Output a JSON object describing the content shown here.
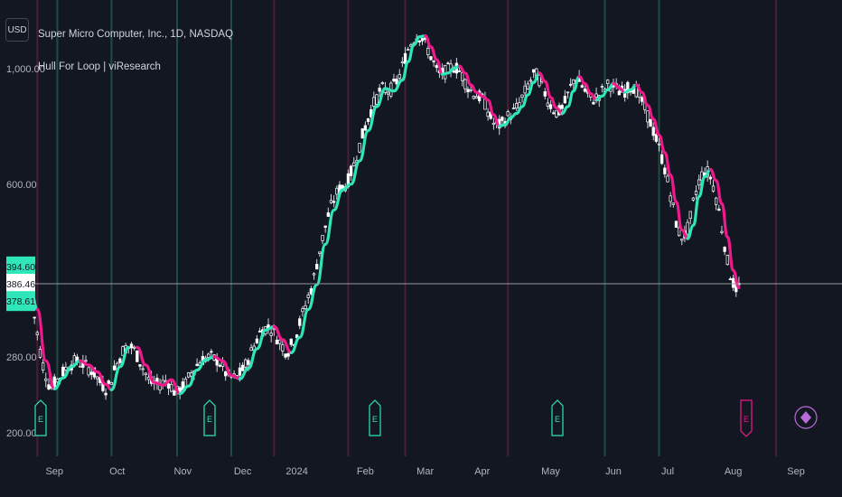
{
  "currency_label": "USD",
  "header": {
    "symbol_line": "Super Micro Computer, Inc., 1D, NASDAQ",
    "indicator_line": "Hull For Loop | viResearch"
  },
  "colors": {
    "background": "#131722",
    "up_color": "#2ee6b8",
    "down_color": "#f0198c",
    "candle": "#ffffff",
    "vline_up": "#1e4d40",
    "vline_down": "#4a1d38",
    "crosshair": "#9598a1"
  },
  "price_badges": [
    {
      "label": "394.60",
      "kind": "up"
    },
    {
      "label": "386.46",
      "kind": "current"
    },
    {
      "label": "378.61",
      "kind": "up"
    }
  ],
  "event_markers": [
    {
      "icon": "earnings-icon",
      "glyph": "E",
      "x": 236,
      "kind": "up"
    },
    {
      "icon": "earnings-icon",
      "glyph": "E",
      "x": 308,
      "kind": "up"
    },
    {
      "icon": "earnings-icon",
      "glyph": "E",
      "x": 440,
      "kind": "up"
    },
    {
      "icon": "earnings-icon",
      "glyph": "E",
      "x": 548,
      "kind": "up"
    },
    {
      "icon": "earnings-icon",
      "glyph": "E",
      "x": 632,
      "kind": "down"
    },
    {
      "icon": "dividend-icon",
      "glyph": "◆",
      "x": 652,
      "kind": "down"
    }
  ],
  "chart_data": {
    "type": "line",
    "x_unit": "trading days since 2023-08-21",
    "x_tick_labels": [
      {
        "label": "Sep",
        "x": 8
      },
      {
        "label": "Oct",
        "x": 30
      },
      {
        "label": "Nov",
        "x": 53
      },
      {
        "label": "Dec",
        "x": 74
      },
      {
        "label": "2024",
        "x": 93
      },
      {
        "label": "Feb",
        "x": 117
      },
      {
        "label": "Mar",
        "x": 138
      },
      {
        "label": "Apr",
        "x": 158
      },
      {
        "label": "May",
        "x": 182
      },
      {
        "label": "Jun",
        "x": 204
      },
      {
        "label": "Jul",
        "x": 223
      },
      {
        "label": "Aug",
        "x": 246
      },
      {
        "label": "Sep",
        "x": 268
      }
    ],
    "y_tick_labels": [
      "200.00",
      "280.00",
      "600.00",
      "1,000.00"
    ],
    "y_ticks": [
      200,
      280,
      600,
      1000
    ],
    "y_scale": "log",
    "ylim": [
      190,
      1300
    ],
    "xlim": [
      0,
      274
    ],
    "vertical_signal_lines": [
      {
        "x": 2,
        "kind": "down"
      },
      {
        "x": 9,
        "kind": "up"
      },
      {
        "x": 28,
        "kind": "up"
      },
      {
        "x": 51,
        "kind": "up"
      },
      {
        "x": 70,
        "kind": "up"
      },
      {
        "x": 85,
        "kind": "down"
      },
      {
        "x": 111,
        "kind": "down"
      },
      {
        "x": 131,
        "kind": "down"
      },
      {
        "x": 167,
        "kind": "down"
      },
      {
        "x": 201,
        "kind": "up"
      },
      {
        "x": 220,
        "kind": "up"
      },
      {
        "x": 261,
        "kind": "down"
      }
    ],
    "hull_line": [
      [
        0,
        370
      ],
      [
        2,
        345
      ],
      [
        5,
        275
      ],
      [
        8,
        243
      ],
      [
        11,
        255
      ],
      [
        14,
        268
      ],
      [
        17,
        275
      ],
      [
        20,
        270
      ],
      [
        23,
        262
      ],
      [
        26,
        248
      ],
      [
        28,
        242
      ],
      [
        31,
        268
      ],
      [
        34,
        292
      ],
      [
        37,
        292
      ],
      [
        40,
        270
      ],
      [
        43,
        250
      ],
      [
        46,
        247
      ],
      [
        49,
        253
      ],
      [
        52,
        238
      ],
      [
        55,
        246
      ],
      [
        58,
        264
      ],
      [
        61,
        276
      ],
      [
        64,
        280
      ],
      [
        67,
        275
      ],
      [
        70,
        258
      ],
      [
        73,
        254
      ],
      [
        76,
        266
      ],
      [
        79,
        290
      ],
      [
        82,
        315
      ],
      [
        85,
        320
      ],
      [
        88,
        302
      ],
      [
        91,
        285
      ],
      [
        94,
        305
      ],
      [
        97,
        345
      ],
      [
        100,
        385
      ],
      [
        103,
        460
      ],
      [
        106,
        535
      ],
      [
        109,
        585
      ],
      [
        112,
        600
      ],
      [
        115,
        665
      ],
      [
        118,
        760
      ],
      [
        121,
        845
      ],
      [
        124,
        915
      ],
      [
        127,
        905
      ],
      [
        130,
        950
      ],
      [
        132,
        1030
      ],
      [
        134,
        1110
      ],
      [
        136,
        1150
      ],
      [
        138,
        1155
      ],
      [
        140,
        1100
      ],
      [
        142,
        1040
      ],
      [
        144,
        975
      ],
      [
        146,
        980
      ],
      [
        148,
        1000
      ],
      [
        150,
        1010
      ],
      [
        152,
        980
      ],
      [
        154,
        930
      ],
      [
        156,
        900
      ],
      [
        158,
        885
      ],
      [
        160,
        870
      ],
      [
        162,
        815
      ],
      [
        164,
        775
      ],
      [
        166,
        780
      ],
      [
        168,
        805
      ],
      [
        170,
        820
      ],
      [
        172,
        845
      ],
      [
        174,
        890
      ],
      [
        176,
        940
      ],
      [
        178,
        980
      ],
      [
        180,
        945
      ],
      [
        182,
        880
      ],
      [
        184,
        840
      ],
      [
        186,
        820
      ],
      [
        188,
        845
      ],
      [
        190,
        905
      ],
      [
        192,
        965
      ],
      [
        194,
        935
      ],
      [
        196,
        895
      ],
      [
        198,
        870
      ],
      [
        200,
        885
      ],
      [
        202,
        910
      ],
      [
        204,
        935
      ],
      [
        206,
        918
      ],
      [
        208,
        900
      ],
      [
        210,
        910
      ],
      [
        212,
        930
      ],
      [
        214,
        900
      ],
      [
        216,
        850
      ],
      [
        218,
        800
      ],
      [
        220,
        745
      ],
      [
        222,
        690
      ],
      [
        224,
        625
      ],
      [
        226,
        555
      ],
      [
        228,
        490
      ],
      [
        230,
        472
      ],
      [
        232,
        500
      ],
      [
        234,
        568
      ],
      [
        236,
        620
      ],
      [
        238,
        640
      ],
      [
        240,
        610
      ],
      [
        242,
        550
      ],
      [
        244,
        475
      ],
      [
        246,
        410
      ],
      [
        248,
        380
      ]
    ],
    "hull_segments": [
      {
        "from": 0,
        "to": 2,
        "dir": "up"
      },
      {
        "from": 2,
        "to": 8,
        "dir": "down"
      },
      {
        "from": 8,
        "to": 17,
        "dir": "up"
      },
      {
        "from": 17,
        "to": 28,
        "dir": "down"
      },
      {
        "from": 28,
        "to": 35,
        "dir": "up"
      },
      {
        "from": 35,
        "to": 52,
        "dir": "down"
      },
      {
        "from": 52,
        "to": 64,
        "dir": "up"
      },
      {
        "from": 64,
        "to": 73,
        "dir": "down"
      },
      {
        "from": 73,
        "to": 85,
        "dir": "up"
      },
      {
        "from": 85,
        "to": 91,
        "dir": "down"
      },
      {
        "from": 91,
        "to": 138,
        "dir": "up"
      },
      {
        "from": 138,
        "to": 144,
        "dir": "down"
      },
      {
        "from": 144,
        "to": 150,
        "dir": "up"
      },
      {
        "from": 150,
        "to": 164,
        "dir": "down"
      },
      {
        "from": 164,
        "to": 178,
        "dir": "up"
      },
      {
        "from": 178,
        "to": 186,
        "dir": "down"
      },
      {
        "from": 186,
        "to": 192,
        "dir": "up"
      },
      {
        "from": 192,
        "to": 198,
        "dir": "down"
      },
      {
        "from": 198,
        "to": 204,
        "dir": "up"
      },
      {
        "from": 204,
        "to": 208,
        "dir": "down"
      },
      {
        "from": 208,
        "to": 212,
        "dir": "up"
      },
      {
        "from": 212,
        "to": 230,
        "dir": "down"
      },
      {
        "from": 230,
        "to": 238,
        "dir": "up"
      },
      {
        "from": 238,
        "to": 248,
        "dir": "down"
      }
    ],
    "current_price": 386.46,
    "badge_prices": [
      394.6,
      386.46,
      378.61
    ]
  }
}
